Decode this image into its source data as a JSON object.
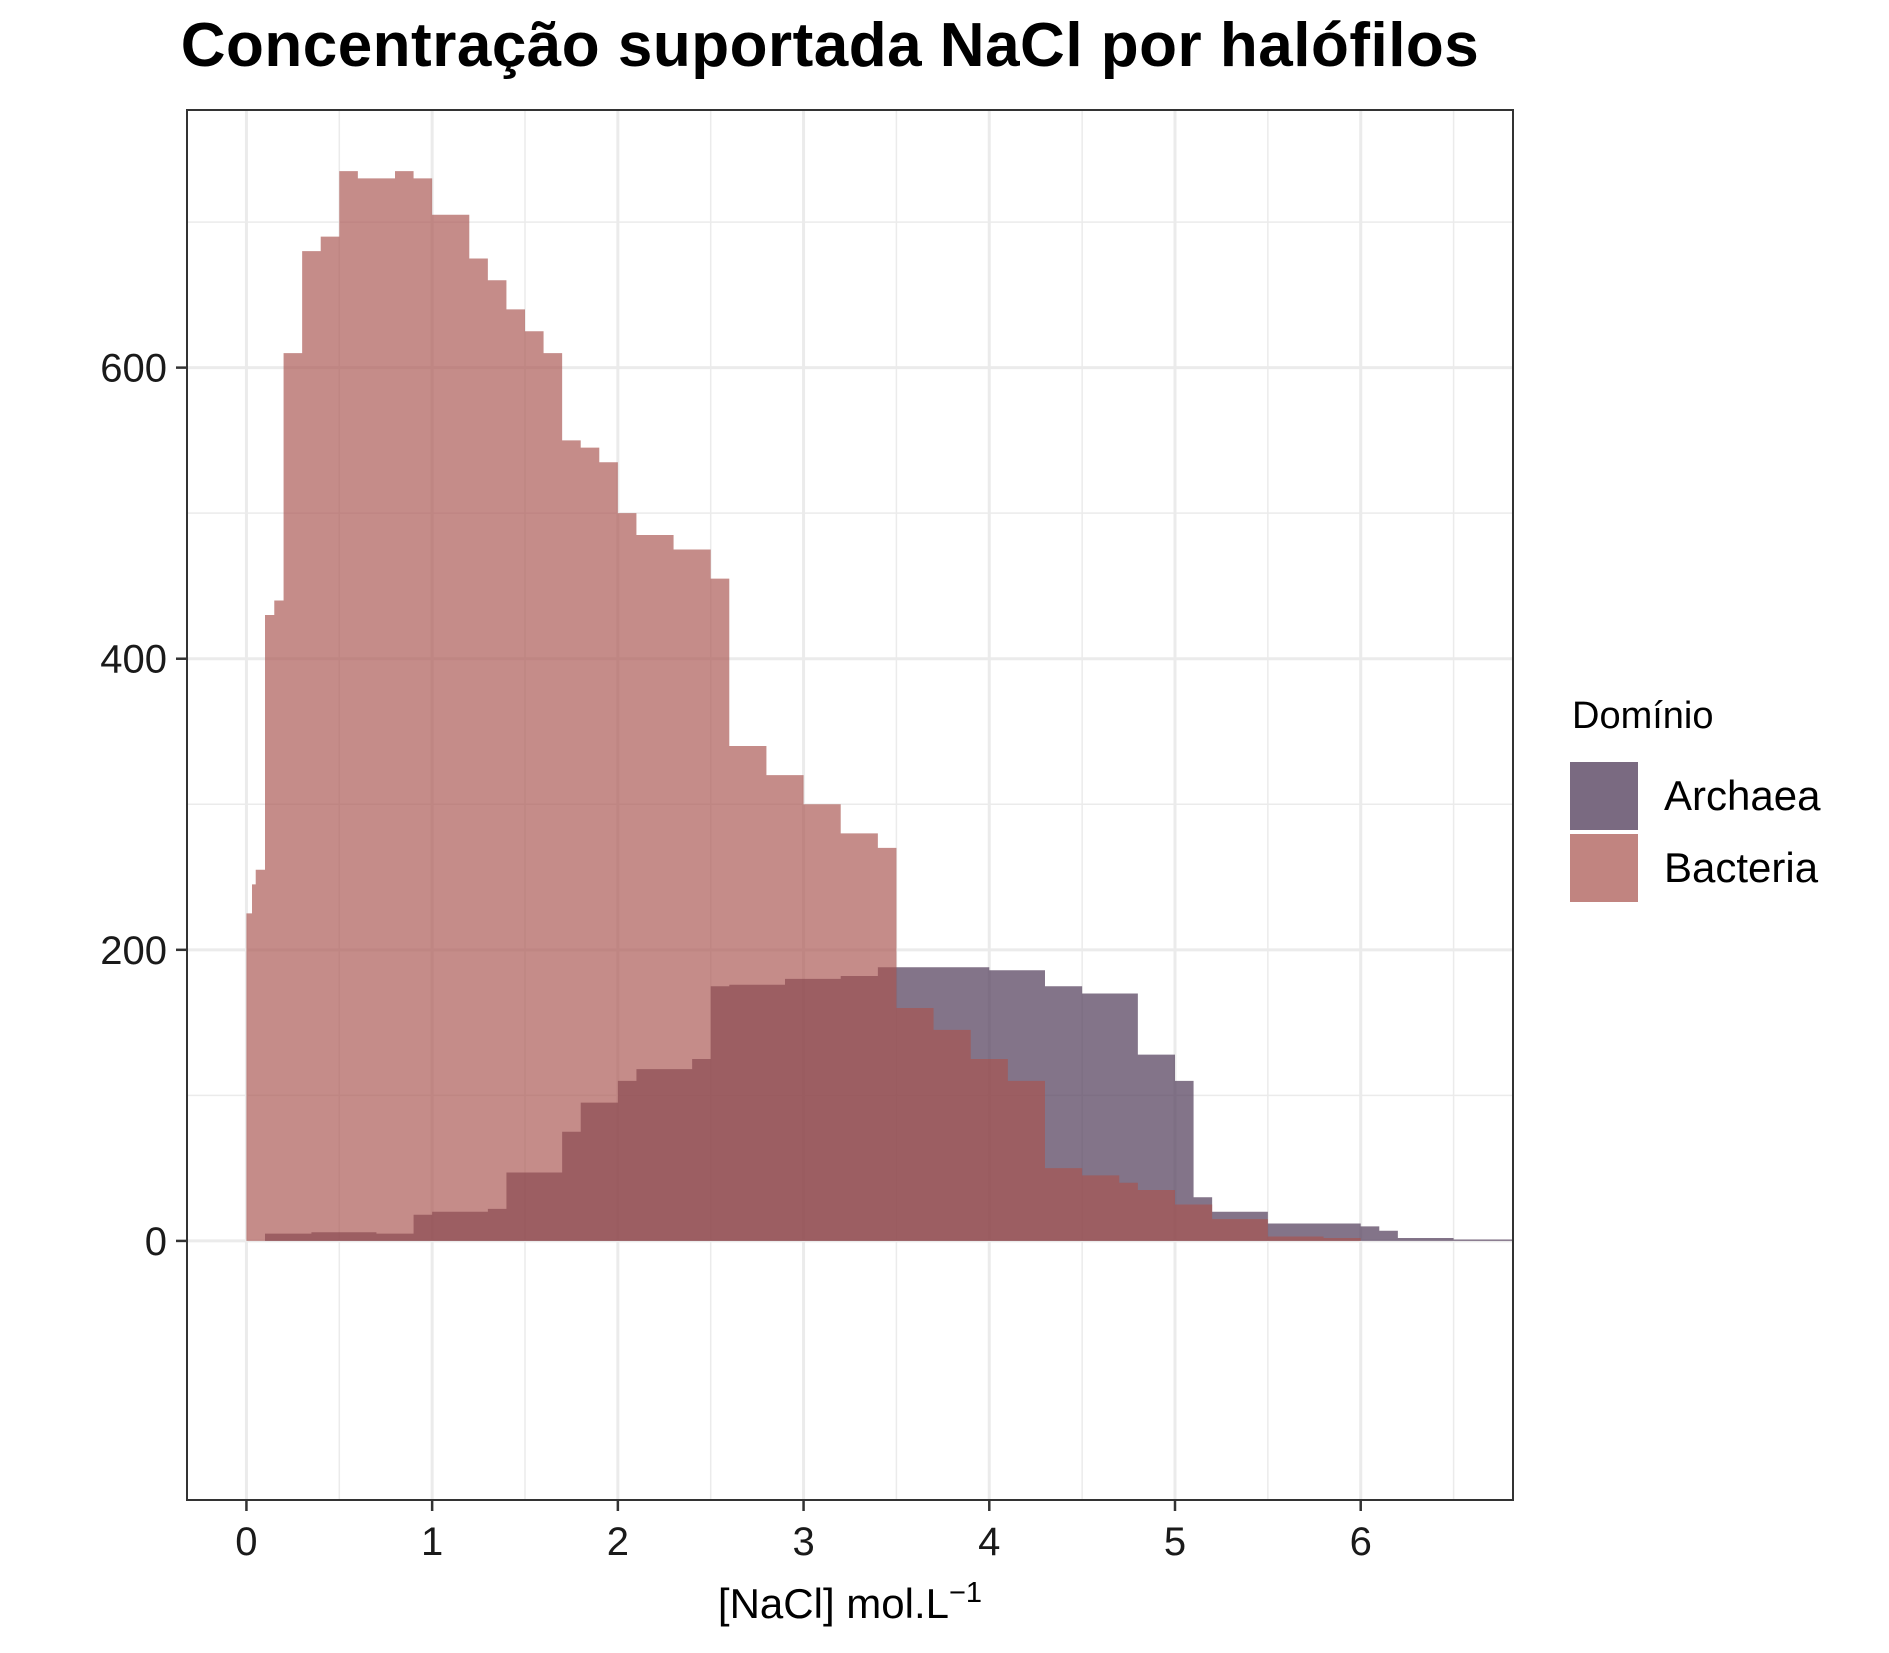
{
  "chart_data": {
    "type": "area",
    "title": "Concentração suportada NaCl por halófilos",
    "xlabel": "[NaCl] mol.L",
    "xlabel_superscript": "−1",
    "ylabel": "",
    "xlim": [
      -0.32,
      6.82
    ],
    "ylim": [
      -178,
      777
    ],
    "x_ticks": [
      0,
      1,
      2,
      3,
      4,
      5,
      6
    ],
    "y_ticks": [
      0,
      200,
      400,
      600
    ],
    "grid": true,
    "legend": {
      "title": "Domínio",
      "position": "right"
    },
    "series": [
      {
        "name": "Archaea",
        "color": "#594561",
        "opacity": 0.75,
        "x": [
          0.0,
          0.1,
          0.35,
          0.7,
          0.9,
          1.0,
          1.3,
          1.4,
          1.7,
          1.8,
          2.0,
          2.1,
          2.4,
          2.5,
          2.6,
          2.9,
          3.2,
          3.4,
          3.8,
          4.0,
          4.3,
          4.5,
          4.8,
          5.0,
          5.1,
          5.2,
          5.5,
          6.0,
          6.1,
          6.2,
          6.5,
          6.82
        ],
        "values": [
          0,
          5,
          6,
          5,
          18,
          20,
          22,
          47,
          75,
          95,
          110,
          118,
          125,
          175,
          176,
          180,
          182,
          188,
          188,
          186,
          175,
          170,
          128,
          110,
          30,
          20,
          12,
          10,
          7,
          2,
          1,
          1
        ]
      },
      {
        "name": "Bacteria",
        "color": "#a9544f",
        "opacity": 0.67,
        "x": [
          0.0,
          0.03,
          0.05,
          0.1,
          0.15,
          0.2,
          0.3,
          0.4,
          0.5,
          0.6,
          0.8,
          0.9,
          1.0,
          1.2,
          1.3,
          1.4,
          1.5,
          1.6,
          1.7,
          1.8,
          1.9,
          2.0,
          2.1,
          2.3,
          2.5,
          2.6,
          2.8,
          3.0,
          3.2,
          3.4,
          3.5,
          3.7,
          3.9,
          4.1,
          4.3,
          4.5,
          4.7,
          4.8,
          5.0,
          5.2,
          5.5,
          5.8,
          6.0,
          6.82
        ],
        "values": [
          225,
          245,
          255,
          430,
          440,
          610,
          680,
          690,
          735,
          730,
          735,
          730,
          705,
          675,
          660,
          640,
          625,
          610,
          550,
          545,
          535,
          500,
          485,
          475,
          455,
          340,
          320,
          300,
          280,
          270,
          160,
          145,
          125,
          110,
          50,
          45,
          40,
          35,
          25,
          15,
          3,
          2,
          0,
          0
        ]
      }
    ]
  }
}
